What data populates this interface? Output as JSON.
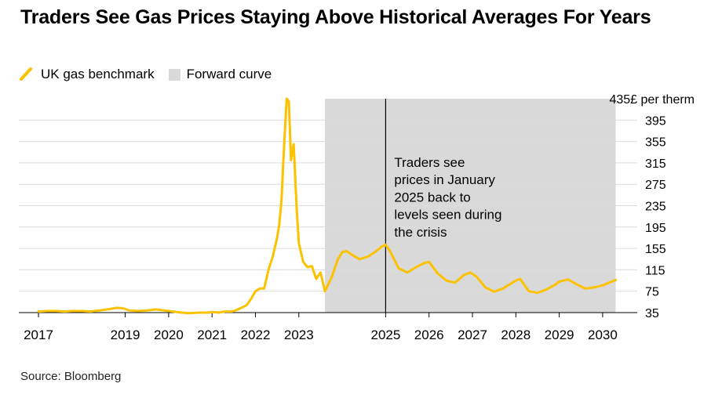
{
  "colors": {
    "series": "#fcc200",
    "forward_band": "#d9d9d9",
    "grid": "#dcdcdc",
    "axis": "#000000"
  },
  "chart_data": {
    "type": "line",
    "title": "Traders See Gas Prices Staying Above Historical Averages For Years",
    "legend": [
      {
        "label": "UK gas benchmark",
        "marker": "line",
        "color": "#fcc200"
      },
      {
        "label": "Forward curve",
        "marker": "box",
        "color": "#d9d9d9"
      }
    ],
    "legend_position": "top-left",
    "y_axis": {
      "side": "right",
      "ylim": [
        35,
        435
      ],
      "ticks": [
        35,
        75,
        115,
        155,
        195,
        235,
        275,
        315,
        355,
        395
      ],
      "top_label": "435£ per therm"
    },
    "x_axis": {
      "xlim": [
        2017.0,
        2030.4
      ],
      "ticks": [
        2017,
        2019,
        2020,
        2021,
        2022,
        2023,
        2025,
        2026,
        2027,
        2028,
        2029,
        2030
      ]
    },
    "grid": true,
    "forward_curve_region": {
      "start": 2023.6,
      "end": 2030.3
    },
    "annotation": {
      "x": 2025.0,
      "lines": [
        "Traders see",
        "prices in January",
        "2025 back to",
        "levels seen during",
        "the crisis"
      ]
    },
    "series": [
      {
        "name": "UK gas benchmark",
        "x": [
          2017.0,
          2017.2,
          2017.4,
          2017.6,
          2017.8,
          2018.0,
          2018.2,
          2018.4,
          2018.6,
          2018.8,
          2018.95,
          2019.1,
          2019.3,
          2019.5,
          2019.6,
          2019.7,
          2019.9,
          2020.1,
          2020.3,
          2020.5,
          2020.7,
          2020.9,
          2021.0,
          2021.15,
          2021.3,
          2021.45,
          2021.5,
          2021.6,
          2021.7,
          2021.8,
          2021.9,
          2022.0,
          2022.1,
          2022.2,
          2022.3,
          2022.4,
          2022.5,
          2022.55,
          2022.6,
          2022.65,
          2022.72,
          2022.77,
          2022.82,
          2022.88,
          2022.95,
          2023.0,
          2023.1,
          2023.2,
          2023.3,
          2023.4,
          2023.5,
          2023.6,
          2023.75,
          2023.9,
          2024.0,
          2024.1,
          2024.25,
          2024.4,
          2024.6,
          2024.75,
          2024.9,
          2025.0,
          2025.1,
          2025.3,
          2025.5,
          2025.7,
          2025.9,
          2026.0,
          2026.2,
          2026.4,
          2026.6,
          2026.8,
          2026.95,
          2027.1,
          2027.3,
          2027.5,
          2027.7,
          2027.9,
          2028.0,
          2028.1,
          2028.3,
          2028.5,
          2028.7,
          2028.9,
          2029.0,
          2029.2,
          2029.4,
          2029.6,
          2029.8,
          2030.0,
          2030.3
        ],
        "values": [
          37,
          38,
          38,
          37,
          38,
          38,
          37,
          39,
          41,
          44,
          43,
          39,
          38,
          39,
          40,
          41,
          39,
          37,
          35,
          34,
          35,
          35,
          36,
          35,
          37,
          37,
          38,
          41,
          45,
          49,
          61,
          75,
          80,
          80,
          115,
          140,
          175,
          200,
          245,
          330,
          435,
          430,
          320,
          350,
          230,
          165,
          130,
          120,
          122,
          98,
          110,
          75,
          100,
          135,
          148,
          150,
          142,
          135,
          140,
          148,
          158,
          162,
          150,
          118,
          110,
          120,
          128,
          130,
          108,
          95,
          91,
          105,
          110,
          102,
          82,
          74,
          80,
          90,
          95,
          98,
          75,
          72,
          78,
          87,
          93,
          97,
          88,
          80,
          82,
          86,
          96
        ]
      }
    ]
  },
  "footer": {
    "source": "Source: Bloomberg"
  }
}
